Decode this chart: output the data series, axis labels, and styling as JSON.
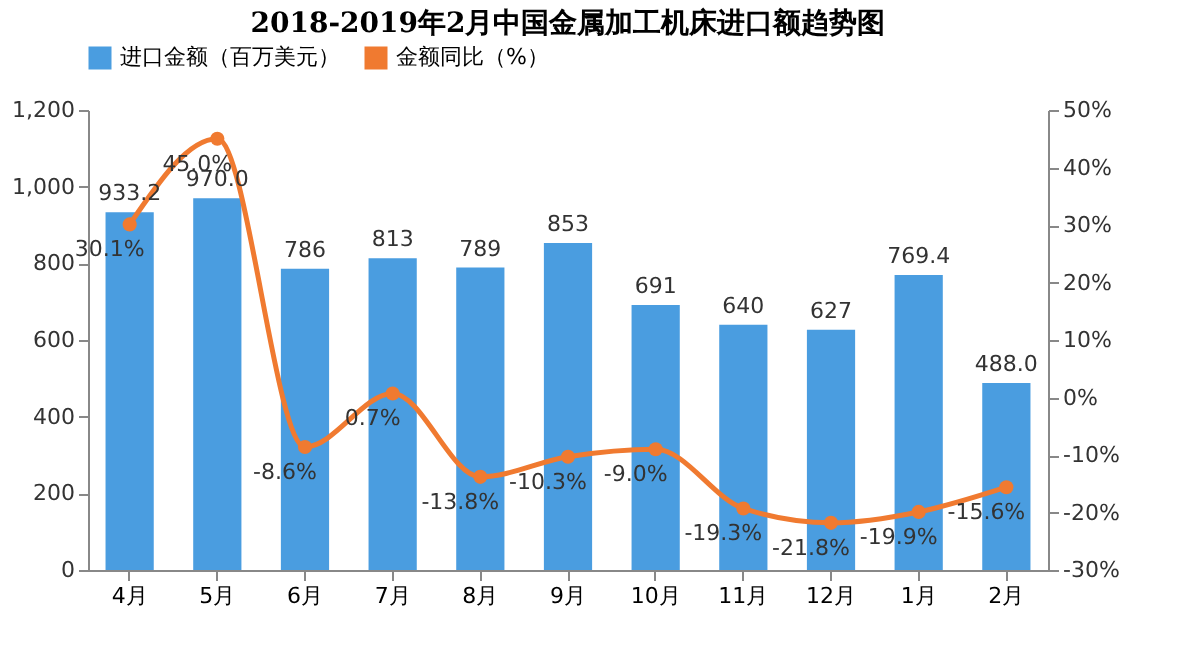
{
  "chart_data": {
    "type": "bar",
    "title": "2018-2019年2月中国金属加工机床进口额趋势图",
    "categories": [
      "4月",
      "5月",
      "6月",
      "7月",
      "8月",
      "9月",
      "10月",
      "11月",
      "12月",
      "1月",
      "2月"
    ],
    "series": [
      {
        "name": "进口金额（百万美元）",
        "color": "#4a9de0",
        "values": [
          933.2,
          970.0,
          786,
          813,
          789,
          853,
          691,
          640,
          627,
          769.4,
          488.0
        ],
        "value_labels": [
          "933.2",
          "970.0",
          "786",
          "813",
          "789",
          "853",
          "691",
          "640",
          "627",
          "769.4",
          "488.0"
        ]
      },
      {
        "name": "金额同比（%）",
        "type": "line",
        "axis": "y2",
        "color": "#f07a30",
        "values": [
          30.1,
          45.0,
          -8.6,
          0.7,
          -13.8,
          -10.3,
          -9.0,
          -19.3,
          -21.8,
          -19.9,
          -15.6
        ],
        "value_labels": [
          "30.1%",
          "45.0%",
          "-8.6%",
          "0.7%",
          "-13.8%",
          "-10.3%",
          "-9.0%",
          "-19.3%",
          "-21.8%",
          "-19.9%",
          "-15.6%"
        ]
      }
    ],
    "ylim": [
      0,
      1200
    ],
    "yticks": [
      0,
      200,
      400,
      600,
      800,
      {
        "value": 1000,
        "label": "1,000"
      },
      {
        "value": 1200,
        "label": "1,200"
      }
    ],
    "y2lim": [
      -30,
      50
    ],
    "y2ticks": [
      {
        "value": -30,
        "label": "-30%"
      },
      {
        "value": -20,
        "label": "-20%"
      },
      {
        "value": -10,
        "label": "-10%"
      },
      {
        "value": 0,
        "label": "0%"
      },
      {
        "value": 10,
        "label": "10%"
      },
      {
        "value": 20,
        "label": "20%"
      },
      {
        "value": 30,
        "label": "30%"
      },
      {
        "value": 40,
        "label": "40%"
      },
      {
        "value": 50,
        "label": "50%"
      }
    ],
    "legend": "top",
    "marker": "circle"
  }
}
